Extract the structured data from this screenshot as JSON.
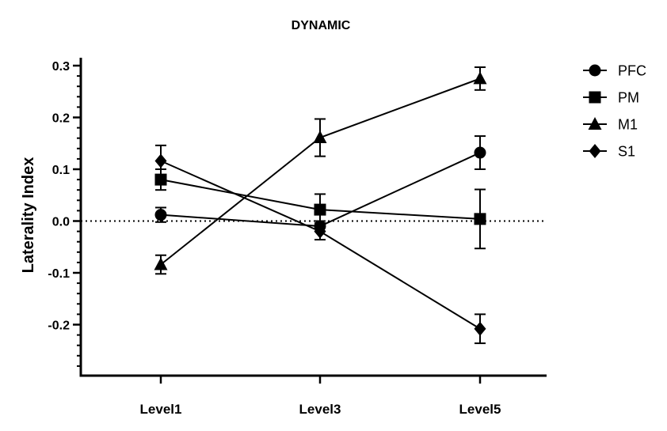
{
  "chart_data": {
    "type": "line",
    "title": "DYNAMIC",
    "xlabel": "",
    "ylabel": "Laterality Index",
    "categories": [
      "Level1",
      "Level3",
      "Level5"
    ],
    "ylim": [
      -0.3,
      0.3
    ],
    "yticks": [
      0.3,
      0.2,
      0.1,
      0.0,
      -0.1,
      -0.2
    ],
    "ytick_labels": [
      "0.3",
      "0.2",
      "0.1",
      "0.0",
      "-0.1",
      "-0.2"
    ],
    "reference_line": {
      "y": 0.0,
      "style": "dotted"
    },
    "grid": false,
    "legend_position": "right",
    "color": "#000000",
    "series": [
      {
        "name": "PFC",
        "marker": "circle",
        "values": [
          0.012,
          -0.01,
          0.132
        ],
        "errors": [
          0.014,
          0.01,
          0.032
        ]
      },
      {
        "name": "PM",
        "marker": "square",
        "values": [
          0.08,
          0.022,
          0.004
        ],
        "errors": [
          0.02,
          0.03,
          0.057
        ]
      },
      {
        "name": "M1",
        "marker": "triangle",
        "values": [
          -0.084,
          0.161,
          0.275
        ],
        "errors": [
          0.018,
          0.036,
          0.022
        ]
      },
      {
        "name": "S1",
        "marker": "diamond",
        "values": [
          0.116,
          -0.02,
          -0.208
        ],
        "errors": [
          0.03,
          0.016,
          0.028
        ]
      }
    ]
  }
}
